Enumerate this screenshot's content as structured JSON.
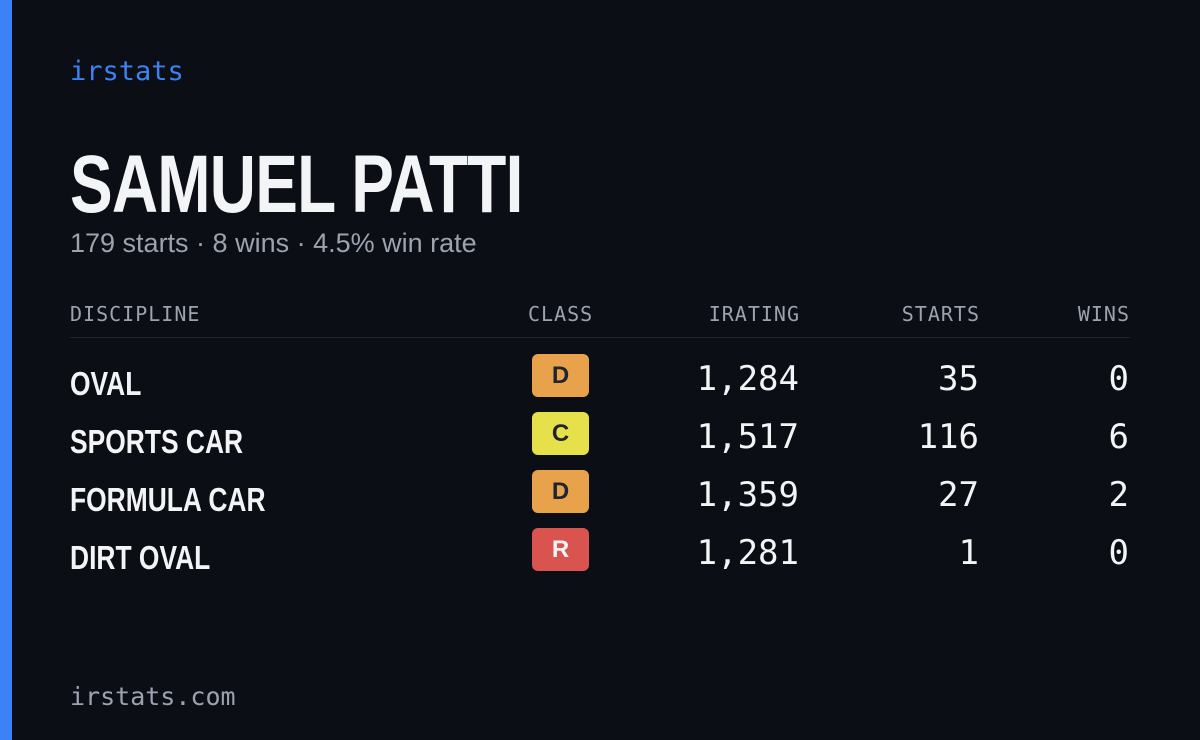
{
  "brand": "irstats",
  "profile": {
    "name": "SAMUEL PATTI",
    "summary": "179 starts · 8 wins · 4.5% win rate"
  },
  "table": {
    "columns": [
      "DISCIPLINE",
      "CLASS",
      "IRATING",
      "STARTS",
      "WINS"
    ],
    "rows": [
      [
        "OVAL",
        "D",
        "1,284",
        "35",
        "0"
      ],
      [
        "SPORTS CAR",
        "C",
        "1,517",
        "116",
        "6"
      ],
      [
        "FORMULA CAR",
        "D",
        "1,359",
        "27",
        "2"
      ],
      [
        "DIRT OVAL",
        "R",
        "1,281",
        "1",
        "0"
      ]
    ]
  },
  "footer": "irstats.com"
}
